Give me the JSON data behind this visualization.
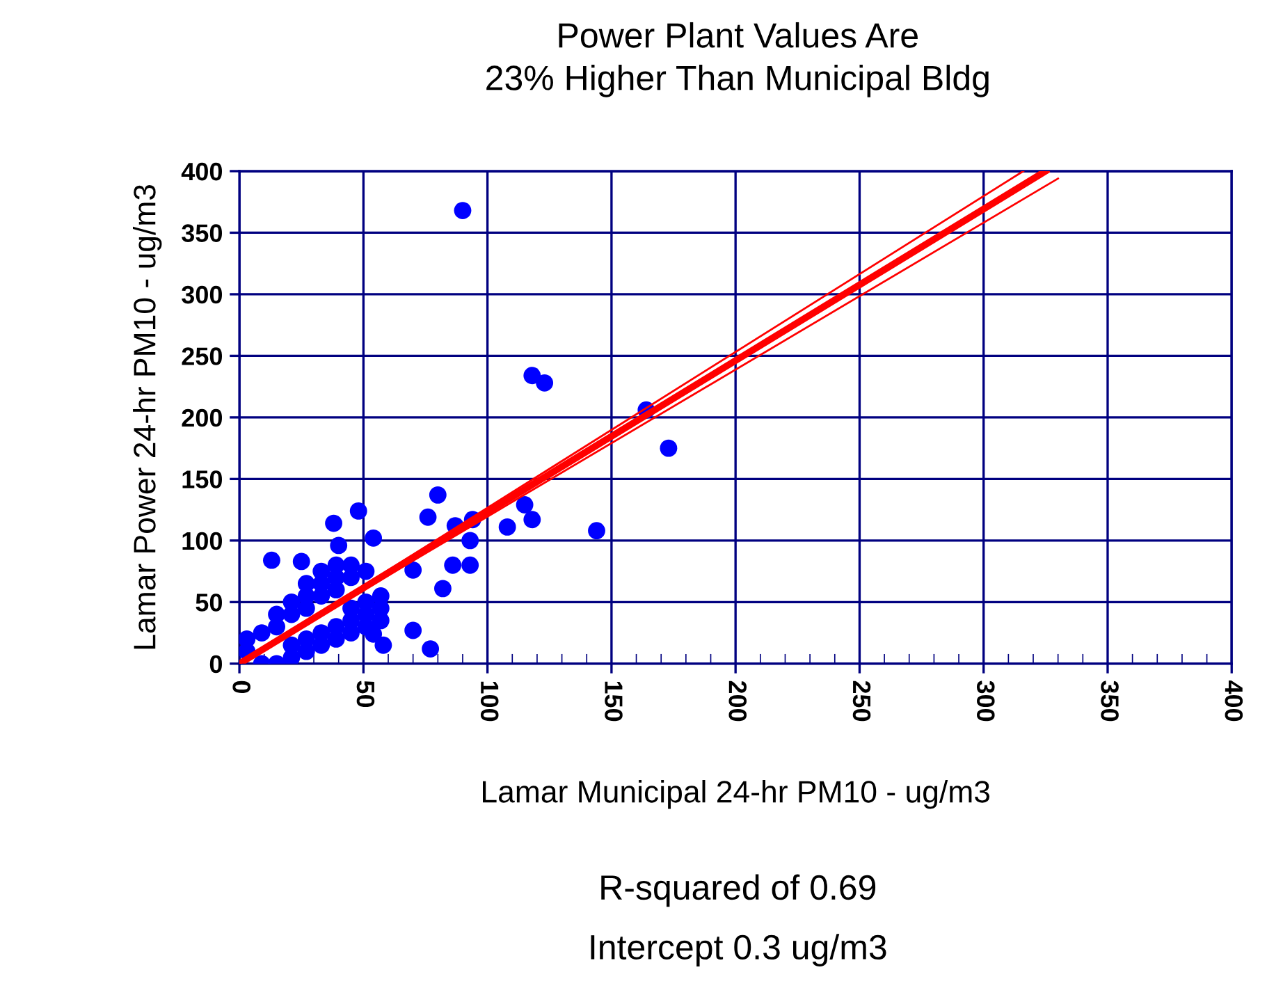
{
  "chart_data": {
    "type": "scatter",
    "title": "Power Plant Values Are\n23% Higher Than Municipal Bldg",
    "xlabel": "Lamar Municipal 24-hr PM10 - ug/m3",
    "ylabel": "Lamar Power 24-hr PM10 - ug/m3",
    "annotations": [
      "R-squared of 0.69",
      "Intercept 0.3 ug/m3"
    ],
    "xlim": [
      0,
      400
    ],
    "ylim": [
      0,
      400
    ],
    "xticks": [
      0,
      50,
      100,
      150,
      200,
      250,
      300,
      350,
      400
    ],
    "yticks": [
      0,
      50,
      100,
      150,
      200,
      250,
      300,
      350,
      400
    ],
    "grid": true,
    "series": [
      {
        "color": "#0000ff",
        "marker": "circle",
        "x": [
          90,
          118,
          123,
          164,
          173,
          144,
          115,
          118,
          108,
          94,
          87,
          93,
          86,
          93,
          82,
          70,
          70,
          77,
          58,
          54,
          80,
          76,
          38,
          48,
          40,
          54,
          13,
          25,
          3,
          3,
          9,
          9,
          15,
          15,
          15,
          21,
          21,
          21,
          21,
          27,
          27,
          27,
          27,
          27,
          33,
          33,
          33,
          33,
          33,
          39,
          39,
          39,
          39,
          39,
          45,
          45,
          45,
          45,
          45,
          51,
          51,
          51,
          51,
          57,
          57,
          57
        ],
        "values": [
          368,
          234,
          228,
          206,
          175,
          108,
          129,
          117,
          111,
          117,
          112,
          100,
          80,
          80,
          61,
          76,
          27,
          12,
          15,
          24,
          137,
          119,
          114,
          124,
          96,
          102,
          84,
          83,
          10,
          20,
          0,
          25,
          0,
          30,
          40,
          5,
          15,
          40,
          50,
          10,
          20,
          45,
          55,
          65,
          15,
          25,
          55,
          65,
          75,
          20,
          30,
          60,
          70,
          80,
          25,
          35,
          45,
          70,
          80,
          30,
          40,
          50,
          75,
          35,
          45,
          55
        ]
      },
      {
        "type": "line",
        "color": "#ff0000",
        "x": [
          0,
          325
        ],
        "values": [
          0,
          400
        ]
      },
      {
        "type": "line",
        "color": "#ff0000",
        "x": [
          0,
          316
        ],
        "values": [
          0,
          400
        ]
      },
      {
        "type": "line",
        "color": "#ff0000",
        "x": [
          0,
          330
        ],
        "values": [
          0,
          394
        ]
      }
    ]
  }
}
